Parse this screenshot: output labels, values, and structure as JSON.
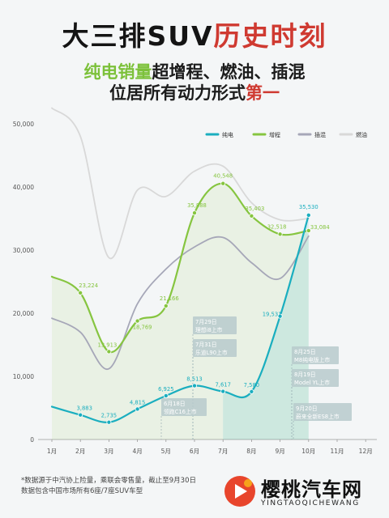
{
  "header": {
    "title_black": "大三排SUV",
    "title_red": "历史时刻",
    "line1_green": "纯电销量",
    "line1_black": "超增程、燃油、插混",
    "line2_black": "位居所有动力形式",
    "line2_red": "第一"
  },
  "colors": {
    "纯电": "#1aaebf",
    "增程": "#86c540",
    "插混": "#a6a7b8",
    "燃油": "#d8d8d8",
    "title_red": "#cf3a31",
    "green": "#7cc13a"
  },
  "chart_data": {
    "type": "line",
    "title": "",
    "xlabel": "",
    "ylabel": "",
    "categories": [
      "1月",
      "2月",
      "3月",
      "4月",
      "5月",
      "6月",
      "7月",
      "8月",
      "9月",
      "10月",
      "11月",
      "12月"
    ],
    "ylim": [
      0,
      50000
    ],
    "yticks": [
      0,
      10000,
      20000,
      30000,
      40000,
      50000
    ],
    "ytick_labels": [
      "0",
      "10,000",
      "20,000",
      "30,000",
      "40,000",
      "50,000"
    ],
    "legend_position": "top-right",
    "grid": false,
    "series": [
      {
        "name": "纯电",
        "values": [
          5200,
          3883,
          2735,
          4815,
          6925,
          8513,
          7617,
          7580,
          19531,
          35530,
          null,
          null
        ],
        "labels": [
          "",
          "3,883",
          "2,735",
          "4,815",
          "6,925",
          "8,513",
          "7,617",
          "7,580",
          "19,531",
          "35,530",
          "",
          ""
        ]
      },
      {
        "name": "增程",
        "values": [
          25800,
          23224,
          13913,
          18769,
          21166,
          35888,
          40548,
          35403,
          32518,
          33084,
          null,
          null
        ],
        "labels": [
          "",
          "23,224",
          "13,913",
          "18,769",
          "21,166",
          "35,888",
          "40,548",
          "35,403",
          "32,518",
          "33,084",
          "",
          ""
        ]
      },
      {
        "name": "插混",
        "values": [
          19200,
          17000,
          11200,
          21500,
          27000,
          30500,
          32000,
          28000,
          25500,
          32200,
          null,
          null
        ]
      },
      {
        "name": "燃油",
        "values": [
          52500,
          48000,
          28800,
          39500,
          38500,
          42500,
          43300,
          37500,
          34800,
          35000,
          null,
          null
        ]
      }
    ],
    "annotations": [
      {
        "month": "7月",
        "lines": [
          "7月29日",
          "理想i8上市"
        ]
      },
      {
        "month": "7月",
        "lines": [
          "7月31日",
          "乐道L90上市"
        ]
      },
      {
        "month": "6月",
        "lines": [
          "6月18日",
          "领跑C16上市"
        ]
      },
      {
        "month": "9月",
        "lines": [
          "8月25日",
          "M8纯电版上市"
        ]
      },
      {
        "month": "9月",
        "lines": [
          "8月19日",
          "Model YL上市"
        ]
      },
      {
        "month": "10月",
        "lines": [
          "9月20日",
          "蔚来全新ES8上市"
        ]
      }
    ]
  },
  "footnote": {
    "line1": "*数据源于中汽协上险量，乘联会零售量，截止至9月30日",
    "line2": "数据包含中国市场所有6座/7座SUV车型"
  },
  "watermark": {
    "name": "樱桃汽车网",
    "pinyin": "YINGTAOQICHEWANG"
  }
}
